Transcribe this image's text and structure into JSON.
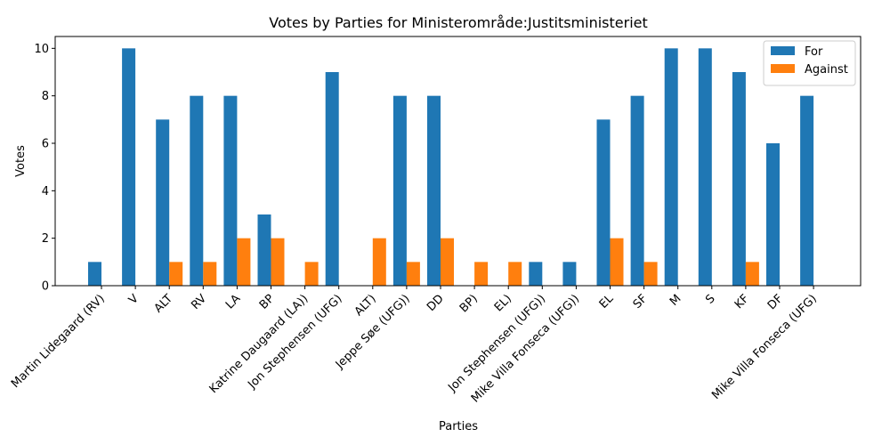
{
  "chart_data": {
    "type": "bar",
    "title": "Votes by Parties for Ministerområde:Justitsministeriet",
    "xlabel": "Parties",
    "ylabel": "Votes",
    "ylim": [
      0,
      10.5
    ],
    "yticks": [
      0,
      2,
      4,
      6,
      8,
      10
    ],
    "grid": false,
    "legend_position": "top-right",
    "categories": [
      "Martin Lidegaard (RV)",
      "V",
      "ALT",
      "RV",
      "LA",
      "BP",
      "Katrine Daugaard (LA))",
      "Jon Stephensen (UFG)",
      "ALT)",
      "Jeppe Søe (UFG))",
      "DD",
      "BP)",
      "EL)",
      "Jon Stephensen (UFG))",
      "Mike Villa Fonseca (UFG))",
      "EL",
      "SF",
      "M",
      "S",
      "KF",
      "DF",
      "Mike Villa Fonseca (UFG)"
    ],
    "series": [
      {
        "name": "For",
        "color": "#1f77b4",
        "values": [
          1,
          10,
          7,
          8,
          8,
          3,
          0,
          9,
          0,
          8,
          8,
          0,
          0,
          1,
          1,
          7,
          8,
          10,
          10,
          9,
          6,
          8
        ]
      },
      {
        "name": "Against",
        "color": "#ff7f0e",
        "values": [
          0,
          0,
          1,
          1,
          2,
          2,
          1,
          0,
          2,
          1,
          2,
          1,
          1,
          0,
          0,
          2,
          1,
          0,
          0,
          1,
          0,
          0
        ]
      }
    ]
  }
}
